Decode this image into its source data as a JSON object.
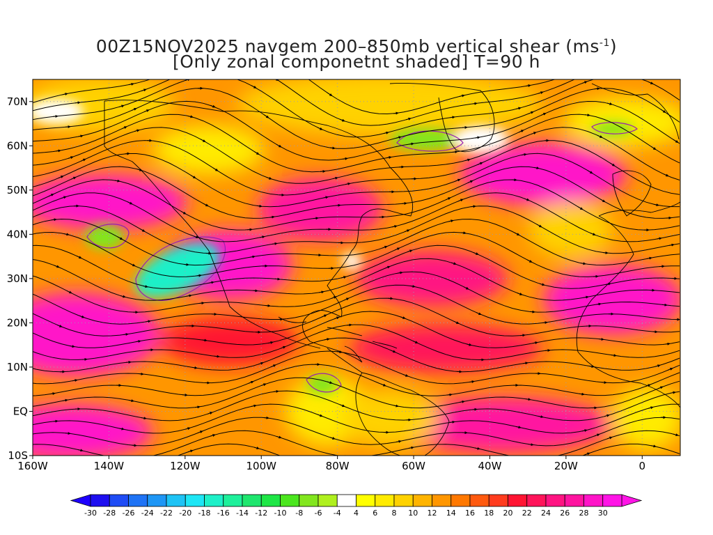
{
  "title": {
    "line1_prefix": "00Z15NOV2025 navgem 200–850mb vertical shear (ms",
    "line1_sup": "-1",
    "line1_suffix": ")",
    "line2": "[Only zonal componetnt shaded] T=90 h"
  },
  "map": {
    "lon_range": [
      -160,
      10
    ],
    "lat_range": [
      -10,
      75
    ],
    "lon_ticks": [
      {
        "value": -160,
        "label": "160W"
      },
      {
        "value": -140,
        "label": "140W"
      },
      {
        "value": -120,
        "label": "120W"
      },
      {
        "value": -100,
        "label": "100W"
      },
      {
        "value": -80,
        "label": "80W"
      },
      {
        "value": -60,
        "label": "60W"
      },
      {
        "value": -40,
        "label": "40W"
      },
      {
        "value": -20,
        "label": "20W"
      },
      {
        "value": 0,
        "label": "0"
      }
    ],
    "lat_ticks": [
      {
        "value": 70,
        "label": "70N"
      },
      {
        "value": 60,
        "label": "60N"
      },
      {
        "value": 50,
        "label": "50N"
      },
      {
        "value": 40,
        "label": "40N"
      },
      {
        "value": 30,
        "label": "30N"
      },
      {
        "value": 20,
        "label": "20N"
      },
      {
        "value": 10,
        "label": "10N"
      },
      {
        "value": 0,
        "label": "EQ"
      },
      {
        "value": -10,
        "label": "10S"
      }
    ],
    "grid": "dotted",
    "streamlines": true,
    "coastlines": true
  },
  "colorbar": {
    "labels": [
      "-30",
      "-28",
      "-26",
      "-24",
      "-22",
      "-20",
      "-18",
      "-16",
      "-14",
      "-12",
      "-10",
      "-8",
      "-6",
      "-4",
      "4",
      "6",
      "8",
      "10",
      "12",
      "14",
      "16",
      "18",
      "20",
      "22",
      "24",
      "26",
      "28",
      "30"
    ],
    "colors": [
      "#1e0ff0",
      "#1f4cf5",
      "#1f73f5",
      "#1e96f5",
      "#1ec3f5",
      "#1ee6f5",
      "#1ef0c8",
      "#1ef09b",
      "#1ee66e",
      "#1ee646",
      "#4be61e",
      "#82e61e",
      "#aff01e",
      "#ffffff",
      "#ffff00",
      "#ffeb00",
      "#ffd200",
      "#ffb400",
      "#ff9600",
      "#ff7800",
      "#ff5a0f",
      "#ff3c1e",
      "#ff1432",
      "#ff145a",
      "#ff1482",
      "#ff14a0",
      "#ff14c8",
      "#ff14e6"
    ],
    "under_color": "#1e00ff",
    "over_color": "#ff14e6"
  }
}
